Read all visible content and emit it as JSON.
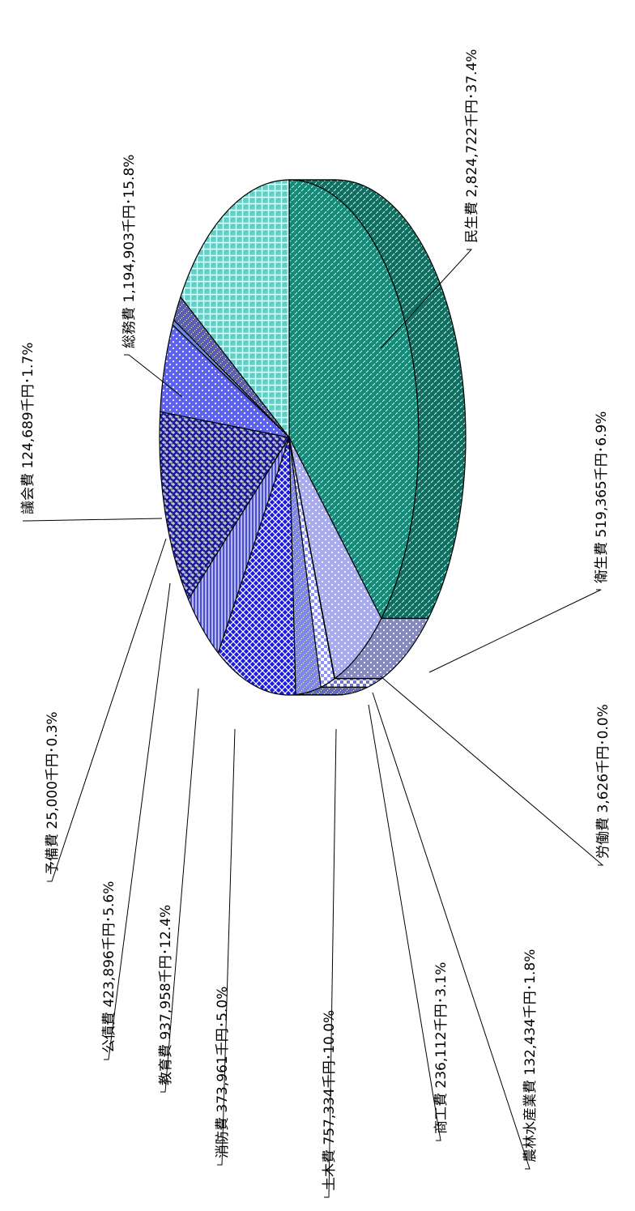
{
  "chart_data": {
    "type": "pie",
    "unit": "千円",
    "slices": [
      {
        "label": "民生費",
        "value": 2824722,
        "percent": 37.4,
        "text": "民生費 2,824,722千円･37.4%",
        "color": "#148a78",
        "pattern": "dash-diag"
      },
      {
        "label": "衛生費",
        "value": 519365,
        "percent": 6.9,
        "text": "衛生費 519,365千円･6.9%",
        "color": "#a8abee",
        "pattern": "dots"
      },
      {
        "label": "労働費",
        "value": 3626,
        "percent": 0.0,
        "text": "労働費 3,626千円･0.0%",
        "color": "#8a8ff0",
        "pattern": "none"
      },
      {
        "label": "農林水産業費",
        "value": 132434,
        "percent": 1.8,
        "text": "農林水産業費 132,434千円･1.8%",
        "color": "#8f95f5",
        "pattern": "checker"
      },
      {
        "label": "商工費",
        "value": 236112,
        "percent": 3.1,
        "text": "商工費 236,112千円･3.1%",
        "color": "#7c86f0",
        "pattern": "fine"
      },
      {
        "label": "土木費",
        "value": 757334,
        "percent": 10.0,
        "text": "土木費 757,334千円･10.0%",
        "color": "#1a1ae0",
        "pattern": "lattice"
      },
      {
        "label": "消防費",
        "value": 373961,
        "percent": 5.0,
        "text": "消防費 373,961千円･5.0%",
        "color": "#4a4fd8",
        "pattern": "vlines"
      },
      {
        "label": "教育費",
        "value": 937958,
        "percent": 12.4,
        "text": "教育費 937,958千円･12.4%",
        "color": "#1c1e8f",
        "pattern": "weave"
      },
      {
        "label": "公債費",
        "value": 423896,
        "percent": 5.6,
        "text": "公債費 423,896千円･5.6%",
        "color": "#5d63f0",
        "pattern": "dots"
      },
      {
        "label": "予備費",
        "value": 25000,
        "percent": 0.3,
        "text": "予備費 25,000千円･0.3%",
        "color": "#6c8ed8",
        "pattern": "none"
      },
      {
        "label": "議会費",
        "value": 124689,
        "percent": 1.7,
        "text": "議会費 124,689千円･1.7%",
        "color": "#5a5eb8",
        "pattern": "fine"
      },
      {
        "label": "総務費",
        "value": 1194903,
        "percent": 15.8,
        "text": "総務費 1,194,903千円･15.8%",
        "color": "#5fd0c8",
        "pattern": "grid"
      }
    ]
  }
}
